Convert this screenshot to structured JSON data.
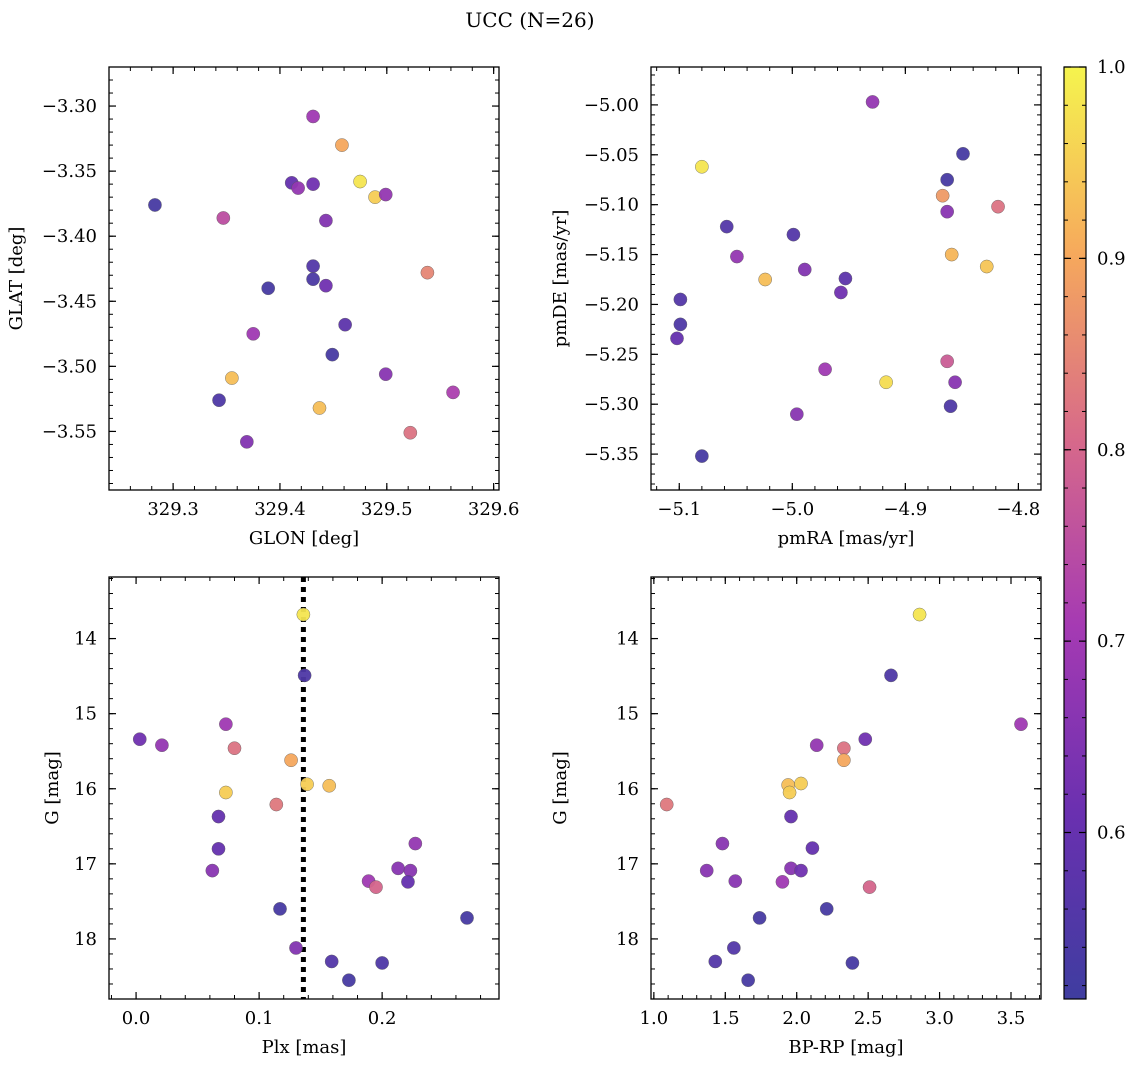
{
  "figure": {
    "title": "UCC (N=26)"
  },
  "colorbar": {
    "ticks": [
      "1.0",
      "0.9",
      "0.8",
      "0.7",
      "0.6"
    ],
    "tick_values": [
      1.0,
      0.9,
      0.8,
      0.7,
      0.6
    ],
    "range": [
      0.513,
      1.0
    ],
    "colormap": "plasma"
  },
  "chart_data": [
    {
      "type": "scatter",
      "panel": "top-left",
      "xlabel": "GLON [deg]",
      "ylabel": "GLAT [deg]",
      "xlim": [
        329.24,
        329.605
      ],
      "ylim": [
        -3.595,
        -3.27
      ],
      "y_inverted": false,
      "xticks": [
        329.3,
        329.4,
        329.5,
        329.6
      ],
      "xtick_labels": [
        "329.3",
        "329.4",
        "329.5",
        "329.6"
      ],
      "yticks": [
        -3.3,
        -3.35,
        -3.4,
        -3.45,
        -3.5,
        -3.55
      ],
      "ytick_labels": [
        "−3.30",
        "−3.35",
        "−3.40",
        "−3.45",
        "−3.50",
        "−3.55"
      ],
      "points": [
        {
          "x": 329.283,
          "y": -3.376,
          "c": 0.53
        },
        {
          "x": 329.347,
          "y": -3.386,
          "c": 0.75
        },
        {
          "x": 329.411,
          "y": -3.359,
          "c": 0.6
        },
        {
          "x": 329.417,
          "y": -3.363,
          "c": 0.68
        },
        {
          "x": 329.431,
          "y": -3.308,
          "c": 0.7
        },
        {
          "x": 329.431,
          "y": -3.36,
          "c": 0.62
        },
        {
          "x": 329.458,
          "y": -3.33,
          "c": 0.9
        },
        {
          "x": 329.475,
          "y": -3.358,
          "c": 0.98
        },
        {
          "x": 329.489,
          "y": -3.37,
          "c": 0.95
        },
        {
          "x": 329.499,
          "y": -3.368,
          "c": 0.68
        },
        {
          "x": 329.443,
          "y": -3.388,
          "c": 0.65
        },
        {
          "x": 329.431,
          "y": -3.423,
          "c": 0.56
        },
        {
          "x": 329.431,
          "y": -3.433,
          "c": 0.54
        },
        {
          "x": 329.443,
          "y": -3.438,
          "c": 0.62
        },
        {
          "x": 329.389,
          "y": -3.44,
          "c": 0.53
        },
        {
          "x": 329.538,
          "y": -3.428,
          "c": 0.85
        },
        {
          "x": 329.461,
          "y": -3.468,
          "c": 0.58
        },
        {
          "x": 329.375,
          "y": -3.475,
          "c": 0.7
        },
        {
          "x": 329.449,
          "y": -3.491,
          "c": 0.53
        },
        {
          "x": 329.355,
          "y": -3.509,
          "c": 0.93
        },
        {
          "x": 329.499,
          "y": -3.506,
          "c": 0.66
        },
        {
          "x": 329.562,
          "y": -3.52,
          "c": 0.72
        },
        {
          "x": 329.343,
          "y": -3.526,
          "c": 0.55
        },
        {
          "x": 329.437,
          "y": -3.532,
          "c": 0.93
        },
        {
          "x": 329.369,
          "y": -3.558,
          "c": 0.65
        },
        {
          "x": 329.522,
          "y": -3.551,
          "c": 0.82
        }
      ]
    },
    {
      "type": "scatter",
      "panel": "top-right",
      "xlabel": "pmRA [mas/yr]",
      "ylabel": "pmDE [mas/yr]",
      "xlim": [
        -5.125,
        -4.78
      ],
      "ylim": [
        -5.386,
        -4.962
      ],
      "y_inverted": false,
      "xticks": [
        -5.1,
        -5.0,
        -4.9,
        -4.8
      ],
      "xtick_labels": [
        "−5.1",
        "−5.0",
        "−4.9",
        "−4.8"
      ],
      "yticks": [
        -5.0,
        -5.05,
        -5.1,
        -5.15,
        -5.2,
        -5.25,
        -5.3,
        -5.35
      ],
      "ytick_labels": [
        "−5.00",
        "−5.05",
        "−5.10",
        "−5.15",
        "−5.20",
        "−5.25",
        "−5.30",
        "−5.35"
      ],
      "points": [
        {
          "x": -5.08,
          "y": -5.062,
          "c": 0.98
        },
        {
          "x": -5.058,
          "y": -5.122,
          "c": 0.56
        },
        {
          "x": -5.049,
          "y": -5.152,
          "c": 0.68
        },
        {
          "x": -5.024,
          "y": -5.175,
          "c": 0.93
        },
        {
          "x": -5.099,
          "y": -5.195,
          "c": 0.56
        },
        {
          "x": -5.099,
          "y": -5.22,
          "c": 0.55
        },
        {
          "x": -5.102,
          "y": -5.234,
          "c": 0.6
        },
        {
          "x": -4.999,
          "y": -5.13,
          "c": 0.56
        },
        {
          "x": -4.989,
          "y": -5.165,
          "c": 0.65
        },
        {
          "x": -4.953,
          "y": -5.174,
          "c": 0.58
        },
        {
          "x": -4.957,
          "y": -5.188,
          "c": 0.62
        },
        {
          "x": -4.971,
          "y": -5.265,
          "c": 0.7
        },
        {
          "x": -4.996,
          "y": -5.31,
          "c": 0.66
        },
        {
          "x": -4.917,
          "y": -5.278,
          "c": 0.97
        },
        {
          "x": -4.929,
          "y": -4.997,
          "c": 0.68
        },
        {
          "x": -4.849,
          "y": -5.049,
          "c": 0.53
        },
        {
          "x": -4.863,
          "y": -5.075,
          "c": 0.53
        },
        {
          "x": -4.867,
          "y": -5.091,
          "c": 0.88
        },
        {
          "x": -4.863,
          "y": -5.107,
          "c": 0.66
        },
        {
          "x": -4.818,
          "y": -5.102,
          "c": 0.82
        },
        {
          "x": -4.859,
          "y": -5.15,
          "c": 0.92
        },
        {
          "x": -4.828,
          "y": -5.162,
          "c": 0.94
        },
        {
          "x": -4.863,
          "y": -5.257,
          "c": 0.78
        },
        {
          "x": -4.856,
          "y": -5.278,
          "c": 0.66
        },
        {
          "x": -4.86,
          "y": -5.302,
          "c": 0.55
        },
        {
          "x": -5.08,
          "y": -5.352,
          "c": 0.53
        }
      ]
    },
    {
      "type": "scatter",
      "panel": "bottom-left",
      "xlabel": "Plx [mas]",
      "ylabel": "G [mag]",
      "xlim": [
        -0.022,
        0.295
      ],
      "ylim": [
        13.18,
        18.8
      ],
      "y_inverted": true,
      "xticks": [
        0.0,
        0.1,
        0.2
      ],
      "xtick_labels": [
        "0.0",
        "0.1",
        "0.2"
      ],
      "yticks": [
        14,
        15,
        16,
        17,
        18
      ],
      "ytick_labels": [
        "14",
        "15",
        "16",
        "17",
        "18"
      ],
      "vline": 0.136,
      "points": [
        {
          "x": 0.136,
          "y": 13.68,
          "c": 0.98
        },
        {
          "x": 0.137,
          "y": 14.49,
          "c": 0.55
        },
        {
          "x": 0.003,
          "y": 15.34,
          "c": 0.62
        },
        {
          "x": 0.021,
          "y": 15.42,
          "c": 0.68
        },
        {
          "x": 0.073,
          "y": 15.14,
          "c": 0.7
        },
        {
          "x": 0.08,
          "y": 15.46,
          "c": 0.82
        },
        {
          "x": 0.126,
          "y": 15.62,
          "c": 0.9
        },
        {
          "x": 0.139,
          "y": 15.94,
          "c": 0.95
        },
        {
          "x": 0.157,
          "y": 15.96,
          "c": 0.93
        },
        {
          "x": 0.073,
          "y": 16.05,
          "c": 0.95
        },
        {
          "x": 0.114,
          "y": 16.21,
          "c": 0.83
        },
        {
          "x": 0.067,
          "y": 16.37,
          "c": 0.6
        },
        {
          "x": 0.067,
          "y": 16.8,
          "c": 0.6
        },
        {
          "x": 0.062,
          "y": 17.09,
          "c": 0.66
        },
        {
          "x": 0.227,
          "y": 16.73,
          "c": 0.68
        },
        {
          "x": 0.213,
          "y": 17.06,
          "c": 0.66
        },
        {
          "x": 0.223,
          "y": 17.09,
          "c": 0.66
        },
        {
          "x": 0.189,
          "y": 17.23,
          "c": 0.7
        },
        {
          "x": 0.195,
          "y": 17.31,
          "c": 0.8
        },
        {
          "x": 0.221,
          "y": 17.24,
          "c": 0.6
        },
        {
          "x": 0.117,
          "y": 17.6,
          "c": 0.53
        },
        {
          "x": 0.269,
          "y": 17.72,
          "c": 0.53
        },
        {
          "x": 0.13,
          "y": 18.12,
          "c": 0.65
        },
        {
          "x": 0.159,
          "y": 18.3,
          "c": 0.56
        },
        {
          "x": 0.2,
          "y": 18.32,
          "c": 0.55
        },
        {
          "x": 0.173,
          "y": 18.55,
          "c": 0.53
        }
      ]
    },
    {
      "type": "scatter",
      "panel": "bottom-right",
      "xlabel": "BP-RP [mag]",
      "ylabel": "G [mag]",
      "xlim": [
        0.98,
        3.71
      ],
      "ylim": [
        13.18,
        18.8
      ],
      "y_inverted": true,
      "xticks": [
        1.0,
        1.5,
        2.0,
        2.5,
        3.0,
        3.5
      ],
      "xtick_labels": [
        "1.0",
        "1.5",
        "2.0",
        "2.5",
        "3.0",
        "3.5"
      ],
      "yticks": [
        14,
        15,
        16,
        17,
        18
      ],
      "ytick_labels": [
        "14",
        "15",
        "16",
        "17",
        "18"
      ],
      "points": [
        {
          "x": 2.86,
          "y": 13.68,
          "c": 0.98
        },
        {
          "x": 2.66,
          "y": 14.49,
          "c": 0.55
        },
        {
          "x": 3.57,
          "y": 15.14,
          "c": 0.7
        },
        {
          "x": 2.48,
          "y": 15.34,
          "c": 0.62
        },
        {
          "x": 2.14,
          "y": 15.42,
          "c": 0.68
        },
        {
          "x": 2.33,
          "y": 15.46,
          "c": 0.82
        },
        {
          "x": 2.33,
          "y": 15.62,
          "c": 0.9
        },
        {
          "x": 1.94,
          "y": 15.95,
          "c": 0.93
        },
        {
          "x": 2.03,
          "y": 15.93,
          "c": 0.95
        },
        {
          "x": 1.95,
          "y": 16.05,
          "c": 0.95
        },
        {
          "x": 1.09,
          "y": 16.21,
          "c": 0.83
        },
        {
          "x": 1.96,
          "y": 16.37,
          "c": 0.6
        },
        {
          "x": 1.48,
          "y": 16.73,
          "c": 0.66
        },
        {
          "x": 2.11,
          "y": 16.79,
          "c": 0.6
        },
        {
          "x": 1.37,
          "y": 17.09,
          "c": 0.66
        },
        {
          "x": 1.96,
          "y": 17.06,
          "c": 0.66
        },
        {
          "x": 2.03,
          "y": 17.09,
          "c": 0.62
        },
        {
          "x": 1.57,
          "y": 17.23,
          "c": 0.66
        },
        {
          "x": 1.9,
          "y": 17.24,
          "c": 0.7
        },
        {
          "x": 2.51,
          "y": 17.31,
          "c": 0.8
        },
        {
          "x": 2.21,
          "y": 17.6,
          "c": 0.53
        },
        {
          "x": 1.74,
          "y": 17.72,
          "c": 0.53
        },
        {
          "x": 1.56,
          "y": 18.12,
          "c": 0.56
        },
        {
          "x": 1.43,
          "y": 18.3,
          "c": 0.56
        },
        {
          "x": 2.39,
          "y": 18.32,
          "c": 0.53
        },
        {
          "x": 1.66,
          "y": 18.55,
          "c": 0.53
        }
      ]
    }
  ]
}
